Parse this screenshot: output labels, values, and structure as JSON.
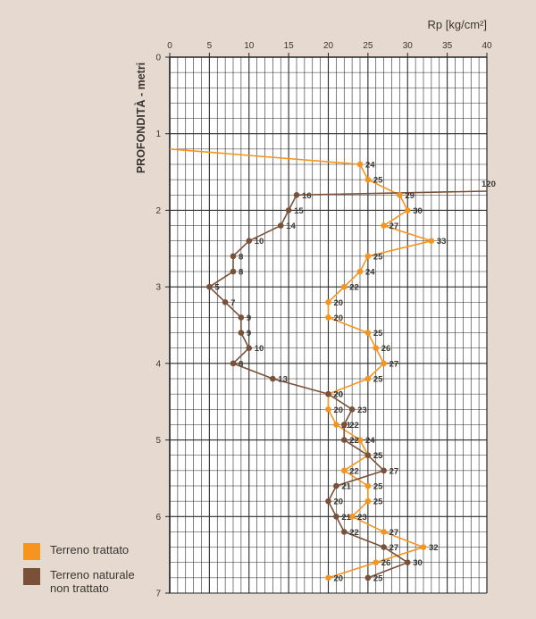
{
  "chart_data": {
    "type": "line",
    "xlabel": "Rp [kg/cm²]",
    "ylabel": "PROFONDITÀ - metri",
    "xlim": [
      0,
      40
    ],
    "ylim": [
      0,
      7
    ],
    "x_ticks": [
      "0",
      "5",
      "10",
      "15",
      "20",
      "25",
      "30",
      "35",
      "40"
    ],
    "y_ticks": [
      "0",
      "1",
      "2",
      "3",
      "4",
      "5",
      "6",
      "7"
    ],
    "grid": true,
    "series": [
      {
        "name": "Terreno trattato",
        "color": "#f7941d",
        "points": [
          {
            "x": 0,
            "y": 1.2,
            "label": ""
          },
          {
            "x": 24,
            "y": 1.4,
            "label": "24"
          },
          {
            "x": 25,
            "y": 1.6,
            "label": "25"
          },
          {
            "x": 29,
            "y": 1.8,
            "label": "29"
          },
          {
            "x": 30,
            "y": 2.0,
            "label": "30"
          },
          {
            "x": 27,
            "y": 2.2,
            "label": "27"
          },
          {
            "x": 33,
            "y": 2.4,
            "label": "33"
          },
          {
            "x": 25,
            "y": 2.6,
            "label": "25"
          },
          {
            "x": 24,
            "y": 2.8,
            "label": "24"
          },
          {
            "x": 22,
            "y": 3.0,
            "label": "22"
          },
          {
            "x": 20,
            "y": 3.2,
            "label": "20"
          },
          {
            "x": 20,
            "y": 3.4,
            "label": "20"
          },
          {
            "x": 25,
            "y": 3.6,
            "label": "25"
          },
          {
            "x": 26,
            "y": 3.8,
            "label": "26"
          },
          {
            "x": 27,
            "y": 4.0,
            "label": "27"
          },
          {
            "x": 25,
            "y": 4.2,
            "label": "25"
          },
          {
            "x": 20,
            "y": 4.4,
            "label": "20"
          },
          {
            "x": 20,
            "y": 4.6,
            "label": "20"
          },
          {
            "x": 21,
            "y": 4.8,
            "label": "21"
          },
          {
            "x": 24,
            "y": 5.0,
            "label": "24"
          },
          {
            "x": 25,
            "y": 5.2,
            "label": "25"
          },
          {
            "x": 22,
            "y": 5.4,
            "label": "22"
          },
          {
            "x": 25,
            "y": 5.6,
            "label": "25"
          },
          {
            "x": 25,
            "y": 5.8,
            "label": "25"
          },
          {
            "x": 23,
            "y": 6.0,
            "label": "23"
          },
          {
            "x": 27,
            "y": 6.2,
            "label": "27"
          },
          {
            "x": 32,
            "y": 6.4,
            "label": "32"
          },
          {
            "x": 26,
            "y": 6.6,
            "label": "26"
          },
          {
            "x": 20,
            "y": 6.8,
            "label": "20"
          }
        ]
      },
      {
        "name": "Terreno naturale non trattato",
        "color": "#7a5138",
        "points": [
          {
            "x": 40,
            "y": 1.75,
            "label": "120"
          },
          {
            "x": 16,
            "y": 1.8,
            "label": "16"
          },
          {
            "x": 15,
            "y": 2.0,
            "label": "15"
          },
          {
            "x": 14,
            "y": 2.2,
            "label": "14"
          },
          {
            "x": 10,
            "y": 2.4,
            "label": "10"
          },
          {
            "x": 8,
            "y": 2.6,
            "label": "8"
          },
          {
            "x": 8,
            "y": 2.8,
            "label": "8"
          },
          {
            "x": 5,
            "y": 3.0,
            "label": "5"
          },
          {
            "x": 7,
            "y": 3.2,
            "label": "7"
          },
          {
            "x": 9,
            "y": 3.4,
            "label": "9"
          },
          {
            "x": 9,
            "y": 3.6,
            "label": "9"
          },
          {
            "x": 10,
            "y": 3.8,
            "label": "10"
          },
          {
            "x": 8,
            "y": 4.0,
            "label": "8"
          },
          {
            "x": 13,
            "y": 4.2,
            "label": "13"
          },
          {
            "x": 20,
            "y": 4.4,
            "label": "20"
          },
          {
            "x": 23,
            "y": 4.6,
            "label": "23"
          },
          {
            "x": 22,
            "y": 4.8,
            "label": "22"
          },
          {
            "x": 22,
            "y": 5.0,
            "label": "22"
          },
          {
            "x": 25,
            "y": 5.2,
            "label": "25"
          },
          {
            "x": 27,
            "y": 5.4,
            "label": "27"
          },
          {
            "x": 21,
            "y": 5.6,
            "label": "21"
          },
          {
            "x": 20,
            "y": 5.8,
            "label": "20"
          },
          {
            "x": 21,
            "y": 6.0,
            "label": "21"
          },
          {
            "x": 22,
            "y": 6.2,
            "label": "22"
          },
          {
            "x": 27,
            "y": 6.4,
            "label": "27"
          },
          {
            "x": 30,
            "y": 6.6,
            "label": "30"
          },
          {
            "x": 25,
            "y": 6.8,
            "label": "25"
          }
        ]
      }
    ]
  },
  "legend": {
    "placement": "bottom-left",
    "items": [
      {
        "label_line1": "Terreno trattato",
        "label_line2": "",
        "color": "#f7941d"
      },
      {
        "label_line1": "Terreno naturale",
        "label_line2": "non trattato",
        "color": "#7a5138"
      }
    ]
  }
}
